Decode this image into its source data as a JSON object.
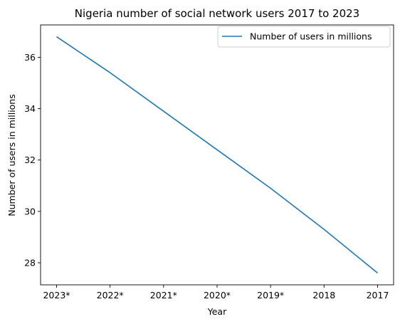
{
  "chart_data": {
    "type": "line",
    "title": "Nigeria number of social network users 2017 to 2023",
    "xlabel": "Year",
    "ylabel": "Number of users in millions",
    "categories": [
      "2023*",
      "2022*",
      "2021*",
      "2020*",
      "2019*",
      "2018",
      "2017"
    ],
    "series": [
      {
        "name": "Number of users in millions",
        "values": [
          36.8,
          35.4,
          33.9,
          32.4,
          30.9,
          29.3,
          27.6
        ],
        "color": "#1f77b4"
      }
    ],
    "yticks": [
      28,
      30,
      32,
      34,
      36
    ],
    "ylim": [
      27.14,
      37.26
    ],
    "grid": false,
    "legend_position": "top-right"
  }
}
